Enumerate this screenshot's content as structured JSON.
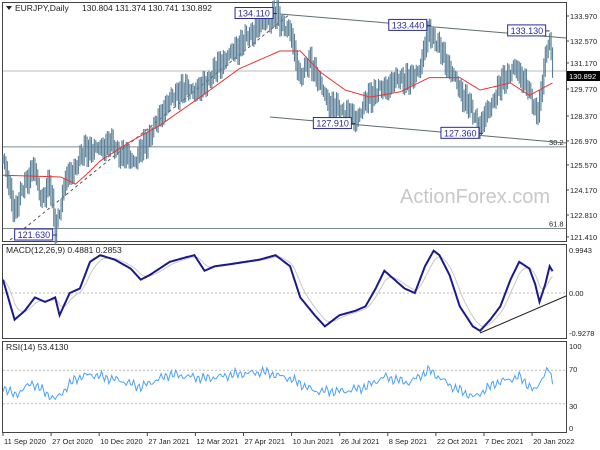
{
  "header": {
    "symbol": "EURJPY,Daily",
    "ohlc": "130.804 131.374 130.741 130.892"
  },
  "watermark": "ActionForex.com",
  "current_price_label": "130.892",
  "colors": {
    "bars": "#5a7f96",
    "ma": "#ee3333",
    "macd": "#1a1a8c",
    "signal": "#c8c8c8",
    "rsi": "#4aa0ff",
    "label_box": "#2a2a9a"
  },
  "chart_data": [
    {
      "type": "ohlc",
      "title": "EURJPY,Daily",
      "x_unit": "bar index",
      "ylim": [
        121.2,
        134.9
      ],
      "y_ticks": [
        "133.970",
        "132.570",
        "131.170",
        "129.770",
        "128.370",
        "126.970",
        "125.570",
        "124.170",
        "122.810",
        "121.410"
      ],
      "x_ticks": [
        "11 Sep 2020",
        "27 Oct 2020",
        "10 Dec 2020",
        "27 Jan 2021",
        "12 Mar 2021",
        "27 Apr 2021",
        "10 Jun 2021",
        "26 Jul 2021",
        "8 Sep 2021",
        "22 Oct 2021",
        "7 Dec 2021",
        "20 Jan 2022"
      ],
      "close_keypoints": [
        [
          0,
          125.9
        ],
        [
          5,
          124
        ],
        [
          8,
          123
        ],
        [
          15,
          124.5
        ],
        [
          21,
          125.5
        ],
        [
          26,
          123.6
        ],
        [
          32,
          124.6
        ],
        [
          36,
          121.9
        ],
        [
          43,
          124.7
        ],
        [
          50,
          125.5
        ],
        [
          57,
          126.5
        ],
        [
          63,
          126.4
        ],
        [
          74,
          126.8
        ],
        [
          81,
          126.2
        ],
        [
          91,
          125.8
        ],
        [
          101,
          127.2
        ],
        [
          112,
          128.9
        ],
        [
          122,
          129.8
        ],
        [
          136,
          129.8
        ],
        [
          150,
          131.3
        ],
        [
          163,
          132.3
        ],
        [
          177,
          133.5
        ],
        [
          188,
          134.0
        ],
        [
          198,
          133.0
        ],
        [
          205,
          130.5
        ],
        [
          212,
          131.5
        ],
        [
          219,
          130.0
        ],
        [
          226,
          128.9
        ],
        [
          236,
          128.5
        ],
        [
          243,
          128.1
        ],
        [
          253,
          129.5
        ],
        [
          263,
          129.9
        ],
        [
          274,
          130.5
        ],
        [
          281,
          130.3
        ],
        [
          288,
          131.2
        ],
        [
          294,
          133.2
        ],
        [
          305,
          131.5
        ],
        [
          315,
          129.8
        ],
        [
          322,
          128.8
        ],
        [
          329,
          127.7
        ],
        [
          339,
          129.4
        ],
        [
          346,
          130.5
        ],
        [
          353,
          131.0
        ],
        [
          360,
          130.3
        ],
        [
          367,
          128.6
        ],
        [
          370,
          129.0
        ],
        [
          374,
          131.5
        ],
        [
          377,
          132.8
        ],
        [
          379,
          130.89
        ]
      ],
      "ma_keypoints": [
        [
          0,
          125.0
        ],
        [
          40,
          124.9
        ],
        [
          50,
          124.5
        ],
        [
          57,
          125.0
        ],
        [
          67,
          125.8
        ],
        [
          88,
          126.9
        ],
        [
          108,
          127.8
        ],
        [
          136,
          129.4
        ],
        [
          163,
          131.0
        ],
        [
          191,
          132.0
        ],
        [
          205,
          132.0
        ],
        [
          219,
          130.8
        ],
        [
          236,
          129.8
        ],
        [
          253,
          129.4
        ],
        [
          274,
          129.7
        ],
        [
          294,
          130.5
        ],
        [
          315,
          130.5
        ],
        [
          329,
          129.8
        ],
        [
          350,
          130.2
        ],
        [
          363,
          129.5
        ],
        [
          379,
          130.2
        ]
      ],
      "annotations": [
        {
          "text": "134.110",
          "bar": 189,
          "price": 134.11
        },
        {
          "text": "133.440",
          "bar": 295,
          "price": 133.44
        },
        {
          "text": "133.130",
          "bar": 377,
          "price": 133.13
        },
        {
          "text": "127.910",
          "bar": 243,
          "price": 127.91
        },
        {
          "text": "127.360",
          "bar": 331,
          "price": 127.36
        },
        {
          "text": "121.630",
          "bar": 37,
          "price": 121.63
        }
      ],
      "fib_levels": [
        {
          "text": "38.2",
          "price": 126.6
        },
        {
          "text": "61.8",
          "price": 122.0
        }
      ]
    },
    {
      "type": "line",
      "title": "MACD(12,26,9) 0.4881 0.2853",
      "ylim": [
        -0.9278,
        0.9943
      ],
      "y_ticks": [
        "0.9943",
        "0.00",
        "-0.9278"
      ],
      "macd_keypoints": [
        [
          0,
          0.3
        ],
        [
          8,
          -0.6
        ],
        [
          15,
          -0.4
        ],
        [
          22,
          -0.1
        ],
        [
          29,
          -0.2
        ],
        [
          36,
          -0.1
        ],
        [
          39,
          -0.5
        ],
        [
          46,
          0
        ],
        [
          53,
          0.1
        ],
        [
          60,
          0.7
        ],
        [
          67,
          0.85
        ],
        [
          77,
          0.75
        ],
        [
          88,
          0.55
        ],
        [
          95,
          0.3
        ],
        [
          101,
          0.4
        ],
        [
          115,
          0.7
        ],
        [
          126,
          0.8
        ],
        [
          132,
          0.85
        ],
        [
          139,
          0.5
        ],
        [
          146,
          0.6
        ],
        [
          157,
          0.65
        ],
        [
          167,
          0.7
        ],
        [
          177,
          0.75
        ],
        [
          188,
          0.85
        ],
        [
          198,
          0.6
        ],
        [
          205,
          -0.1
        ],
        [
          215,
          -0.5
        ],
        [
          222,
          -0.75
        ],
        [
          232,
          -0.5
        ],
        [
          243,
          -0.4
        ],
        [
          250,
          -0.3
        ],
        [
          257,
          0.1
        ],
        [
          263,
          0.5
        ],
        [
          270,
          0.3
        ],
        [
          277,
          0.1
        ],
        [
          284,
          0
        ],
        [
          291,
          0.6
        ],
        [
          297,
          0.95
        ],
        [
          301,
          0.85
        ],
        [
          308,
          0.4
        ],
        [
          315,
          -0.3
        ],
        [
          324,
          -0.75
        ],
        [
          329,
          -0.85
        ],
        [
          336,
          -0.6
        ],
        [
          343,
          -0.3
        ],
        [
          350,
          0.3
        ],
        [
          356,
          0.7
        ],
        [
          363,
          0.55
        ],
        [
          367,
          0.2
        ],
        [
          370,
          -0.2
        ],
        [
          374,
          0.2
        ],
        [
          377,
          0.6
        ],
        [
          379,
          0.49
        ]
      ]
    },
    {
      "type": "line",
      "title": "RSI(14) 53.4130",
      "ylim": [
        0,
        100
      ],
      "y_ticks": [
        "100",
        "70",
        "30",
        "0"
      ],
      "rsi_keypoints": [
        [
          0,
          50
        ],
        [
          8,
          40
        ],
        [
          20,
          55
        ],
        [
          36,
          35
        ],
        [
          50,
          60
        ],
        [
          60,
          65
        ],
        [
          80,
          58
        ],
        [
          95,
          50
        ],
        [
          115,
          65
        ],
        [
          140,
          60
        ],
        [
          160,
          65
        ],
        [
          180,
          68
        ],
        [
          198,
          60
        ],
        [
          215,
          45
        ],
        [
          236,
          45
        ],
        [
          250,
          50
        ],
        [
          263,
          62
        ],
        [
          280,
          55
        ],
        [
          294,
          70
        ],
        [
          310,
          50
        ],
        [
          325,
          38
        ],
        [
          340,
          55
        ],
        [
          356,
          62
        ],
        [
          367,
          45
        ],
        [
          374,
          68
        ],
        [
          377,
          70
        ],
        [
          379,
          53.41
        ]
      ]
    }
  ]
}
